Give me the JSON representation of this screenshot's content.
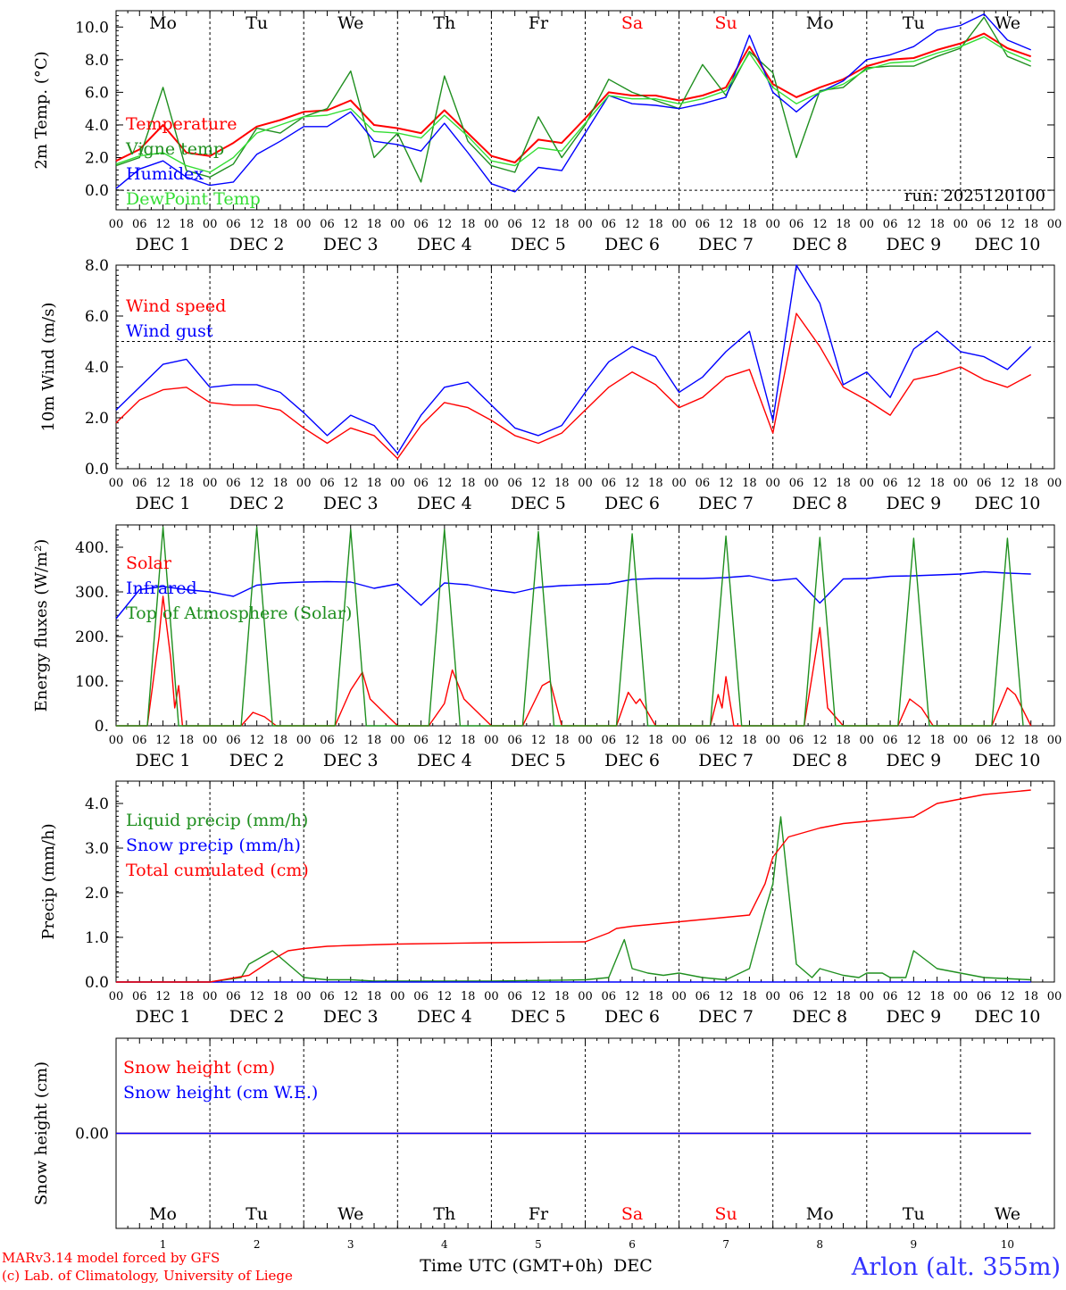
{
  "x_axis": {
    "day_labels": [
      "Mo",
      "Tu",
      "We",
      "Th",
      "Fr",
      "Sa",
      "Su",
      "Mo",
      "Tu",
      "We"
    ],
    "weekend_flags": [
      false,
      false,
      false,
      false,
      false,
      true,
      true,
      false,
      false,
      false
    ],
    "date_labels": [
      "DEC  1",
      "DEC  2",
      "DEC  3",
      "DEC  4",
      "DEC  5",
      "DEC  6",
      "DEC  7",
      "DEC  8",
      "DEC  9",
      "DEC 10"
    ],
    "hour_labels": [
      "00",
      "06",
      "12",
      "18"
    ],
    "final_hour_label": "00",
    "bottom_day_numbers": [
      "1",
      "2",
      "3",
      "4",
      "5",
      "6",
      "7",
      "8",
      "9",
      "10"
    ],
    "bottom_month": "DEC",
    "time_title": "Time UTC (GMT+0h)"
  },
  "colors": {
    "red": "#ff0000",
    "green": "#1f8f1f",
    "blue": "#0000ff",
    "lightgreen": "#33dd33",
    "dark_green_line": "#228b22"
  },
  "footer": {
    "model_line": "MARv3.14 model forced by GFS",
    "copyright_line": "(c) Lab. of Climatology, University of Liege",
    "location": "Arlon (alt. 355m)"
  },
  "chart_data": [
    {
      "type": "line",
      "ylabel": "2m Temp. (°C)",
      "ylim": [
        -1.2,
        11
      ],
      "yticks": [
        "0.0",
        "2.0",
        "4.0",
        "6.0",
        "8.0",
        "10.0"
      ],
      "reference_line": 0,
      "annotation": "run: 2025120100",
      "x_unit": "hours since DEC 1 00 UTC",
      "series": [
        {
          "name": "Temperature",
          "color": "#ff0000",
          "x": [
            0,
            6,
            12,
            18,
            24,
            30,
            36,
            42,
            48,
            54,
            60,
            66,
            72,
            78,
            84,
            90,
            96,
            102,
            108,
            114,
            120,
            126,
            132,
            138,
            144,
            150,
            156,
            162,
            168,
            174,
            180,
            186,
            192,
            198,
            204,
            210,
            216,
            222,
            228,
            234
          ],
          "values": [
            1.8,
            2.5,
            4,
            2.3,
            2.1,
            2.9,
            3.9,
            4.3,
            4.8,
            4.9,
            5.5,
            4,
            3.8,
            3.5,
            4.9,
            3.5,
            2.1,
            1.7,
            3.1,
            2.9,
            4.4,
            6,
            5.8,
            5.8,
            5.5,
            5.8,
            6.3,
            8.8,
            6.5,
            5.7,
            6.3,
            6.8,
            7.6,
            8,
            8.1,
            8.6,
            9,
            9.6,
            8.7,
            8.2
          ]
        },
        {
          "name": "Vigne temp",
          "color": "#1f8f1f",
          "x": [
            0,
            6,
            12,
            18,
            24,
            30,
            36,
            42,
            48,
            54,
            60,
            66,
            72,
            78,
            84,
            90,
            96,
            102,
            108,
            114,
            120,
            126,
            132,
            138,
            144,
            150,
            156,
            162,
            168,
            174,
            180,
            186,
            192,
            198,
            204,
            210,
            216,
            222,
            228,
            234
          ],
          "values": [
            1.5,
            2,
            6.3,
            1.2,
            0.8,
            1.6,
            3.8,
            3.5,
            4.5,
            5,
            7.3,
            2,
            3.5,
            0.5,
            7,
            3,
            1.5,
            1.1,
            4.5,
            2,
            4,
            6.8,
            6,
            5.5,
            5,
            7.7,
            5.8,
            8.5,
            7.2,
            2,
            6.1,
            6.3,
            7.5,
            7.6,
            7.6,
            8.2,
            8.7,
            10.6,
            8.2,
            7.6
          ]
        },
        {
          "name": "Humidex",
          "color": "#0000ff",
          "x": [
            0,
            6,
            12,
            18,
            24,
            30,
            36,
            42,
            48,
            54,
            60,
            66,
            72,
            78,
            84,
            90,
            96,
            102,
            108,
            114,
            120,
            126,
            132,
            138,
            144,
            150,
            156,
            162,
            168,
            174,
            180,
            186,
            192,
            198,
            204,
            210,
            216,
            222,
            228,
            234
          ],
          "values": [
            0.1,
            1.3,
            1.8,
            0.8,
            0.3,
            0.5,
            2.2,
            3,
            3.9,
            3.9,
            4.8,
            3,
            2.8,
            2.4,
            4.1,
            2.3,
            0.4,
            -0.1,
            1.4,
            1.2,
            3.5,
            5.8,
            5.3,
            5.2,
            5,
            5.3,
            5.7,
            9.5,
            6,
            4.8,
            6,
            6.7,
            8,
            8.3,
            8.8,
            9.8,
            10.1,
            10.8,
            9.2,
            8.6
          ]
        },
        {
          "name": "DewPoint Temp",
          "color": "#33dd33",
          "x": [
            0,
            6,
            12,
            18,
            24,
            30,
            36,
            42,
            48,
            54,
            60,
            66,
            72,
            78,
            84,
            90,
            96,
            102,
            108,
            114,
            120,
            126,
            132,
            138,
            144,
            150,
            156,
            162,
            168,
            174,
            180,
            186,
            192,
            198,
            204,
            210,
            216,
            222,
            228,
            234
          ],
          "values": [
            1.6,
            2.1,
            2.3,
            1.5,
            1.1,
            2,
            3.5,
            4,
            4.5,
            4.6,
            5,
            3.6,
            3.5,
            3.2,
            4.6,
            3.3,
            1.8,
            1.5,
            2.6,
            2.4,
            4.1,
            5.8,
            5.6,
            5.6,
            5.3,
            5.6,
            6.1,
            8.4,
            6.3,
            5.3,
            6,
            6.5,
            7.4,
            7.8,
            7.9,
            8.4,
            8.8,
            9.4,
            8.5,
            7.9
          ]
        }
      ]
    },
    {
      "type": "line",
      "ylabel": "10m Wind (m/s)",
      "ylim": [
        0,
        8
      ],
      "yticks": [
        "0.0",
        "2.0",
        "4.0",
        "6.0",
        "8.0"
      ],
      "reference_line": 5,
      "series": [
        {
          "name": "Wind speed",
          "color": "#ff0000",
          "x": [
            0,
            6,
            12,
            18,
            24,
            30,
            36,
            42,
            48,
            54,
            60,
            66,
            72,
            78,
            84,
            90,
            96,
            102,
            108,
            114,
            120,
            126,
            132,
            138,
            144,
            150,
            156,
            162,
            168,
            174,
            180,
            186,
            192,
            198,
            204,
            210,
            216,
            222,
            228,
            234
          ],
          "values": [
            1.8,
            2.7,
            3.1,
            3.2,
            2.6,
            2.5,
            2.5,
            2.3,
            1.6,
            1.0,
            1.6,
            1.3,
            0.4,
            1.7,
            2.6,
            2.4,
            1.9,
            1.3,
            1.0,
            1.4,
            2.3,
            3.2,
            3.8,
            3.3,
            2.4,
            2.8,
            3.6,
            3.9,
            1.4,
            6.1,
            4.8,
            3.2,
            2.7,
            2.1,
            3.5,
            3.7,
            4.0,
            3.5,
            3.2,
            3.7
          ]
        },
        {
          "name": "Wind gust",
          "color": "#0000ff",
          "x": [
            0,
            6,
            12,
            18,
            24,
            30,
            36,
            42,
            48,
            54,
            60,
            66,
            72,
            78,
            84,
            90,
            96,
            102,
            108,
            114,
            120,
            126,
            132,
            138,
            144,
            150,
            156,
            162,
            168,
            174,
            180,
            186,
            192,
            198,
            204,
            210,
            216,
            222,
            228,
            234
          ],
          "values": [
            2.3,
            3.2,
            4.1,
            4.3,
            3.2,
            3.3,
            3.3,
            3.0,
            2.2,
            1.3,
            2.1,
            1.7,
            0.6,
            2.1,
            3.2,
            3.4,
            2.5,
            1.6,
            1.3,
            1.7,
            3.0,
            4.2,
            4.8,
            4.4,
            3.0,
            3.6,
            4.6,
            5.4,
            1.9,
            8.0,
            6.5,
            3.3,
            3.8,
            2.8,
            4.7,
            5.4,
            4.6,
            4.4,
            3.9,
            4.8
          ]
        }
      ]
    },
    {
      "type": "line",
      "ylabel": "Energy fluxes (W/m²)",
      "ylim": [
        0,
        450
      ],
      "yticks": [
        "0.",
        "100.",
        "200.",
        "300.",
        "400."
      ],
      "series": [
        {
          "name": "Solar",
          "color": "#ff0000",
          "x": [
            0,
            8,
            11,
            12,
            14,
            15,
            16,
            17,
            24,
            32,
            35,
            38,
            41,
            48,
            56,
            60,
            63,
            65,
            72,
            80,
            84,
            86,
            89,
            96,
            104,
            109,
            111,
            114,
            120,
            128,
            131,
            133,
            134,
            138,
            144,
            152,
            154,
            155,
            156,
            158,
            162,
            168,
            176,
            180,
            182,
            186,
            192,
            200,
            203,
            206,
            209,
            216,
            224,
            228,
            230,
            234
          ],
          "values": [
            0,
            0,
            200,
            290,
            150,
            40,
            90,
            0,
            0,
            0,
            30,
            20,
            0,
            0,
            0,
            80,
            120,
            60,
            0,
            0,
            50,
            125,
            60,
            0,
            0,
            90,
            100,
            0,
            0,
            0,
            75,
            50,
            60,
            0,
            0,
            0,
            70,
            40,
            110,
            0,
            0,
            0,
            0,
            220,
            40,
            0,
            0,
            0,
            60,
            40,
            0,
            0,
            0,
            85,
            70,
            0
          ]
        },
        {
          "name": "Infrared",
          "color": "#0000ff",
          "x": [
            0,
            6,
            12,
            18,
            24,
            30,
            36,
            42,
            48,
            54,
            60,
            66,
            72,
            78,
            84,
            90,
            96,
            102,
            108,
            114,
            120,
            126,
            132,
            138,
            144,
            150,
            156,
            162,
            168,
            174,
            180,
            186,
            192,
            198,
            204,
            210,
            216,
            222,
            228,
            234
          ],
          "values": [
            240,
            305,
            312,
            305,
            300,
            290,
            315,
            320,
            322,
            323,
            322,
            308,
            318,
            270,
            320,
            316,
            305,
            298,
            310,
            314,
            316,
            318,
            328,
            330,
            330,
            330,
            332,
            336,
            325,
            330,
            275,
            329,
            330,
            335,
            336,
            338,
            340,
            345,
            342,
            340
          ]
        },
        {
          "name": "Top of Atmosphere (Solar)",
          "color": "#1f8f1f",
          "x": [
            0,
            8,
            12,
            16,
            24,
            32,
            36,
            40,
            48,
            56,
            60,
            64,
            72,
            80,
            84,
            88,
            96,
            104,
            108,
            112,
            120,
            128,
            132,
            136,
            144,
            152,
            156,
            160,
            168,
            176,
            180,
            184,
            192,
            200,
            204,
            208,
            216,
            224,
            228,
            232
          ],
          "values": [
            0,
            0,
            445,
            0,
            0,
            0,
            445,
            0,
            0,
            0,
            440,
            0,
            0,
            0,
            440,
            0,
            0,
            0,
            435,
            0,
            0,
            0,
            430,
            0,
            0,
            0,
            425,
            0,
            0,
            0,
            422,
            0,
            0,
            0,
            420,
            0,
            0,
            0,
            420,
            0
          ]
        }
      ]
    },
    {
      "type": "line",
      "ylabel": "Precip (mm/h)",
      "ylim": [
        0,
        4.5
      ],
      "yticks": [
        "0.0",
        "1.0",
        "2.0",
        "3.0",
        "4.0"
      ],
      "series": [
        {
          "name": "Liquid precip (mm/h)",
          "color": "#1f8f1f",
          "x": [
            0,
            12,
            24,
            32,
            34,
            38,
            40,
            44,
            48,
            54,
            60,
            66,
            72,
            96,
            120,
            126,
            130,
            132,
            136,
            140,
            144,
            150,
            156,
            162,
            166,
            168,
            170,
            174,
            178,
            180,
            184,
            186,
            190,
            192,
            196,
            198,
            202,
            204,
            210,
            216,
            222,
            234
          ],
          "values": [
            0,
            0,
            0,
            0.1,
            0.4,
            0.6,
            0.7,
            0.4,
            0.1,
            0.05,
            0.05,
            0.02,
            0.02,
            0.02,
            0.05,
            0.1,
            0.95,
            0.3,
            0.2,
            0.15,
            0.2,
            0.1,
            0.05,
            0.3,
            1.6,
            2.2,
            3.7,
            0.4,
            0.1,
            0.3,
            0.2,
            0.15,
            0.1,
            0.2,
            0.2,
            0.1,
            0.1,
            0.7,
            0.3,
            0.2,
            0.1,
            0.05
          ]
        },
        {
          "name": "Snow precip (mm/h)",
          "color": "#0000ff",
          "x": [
            0,
            234
          ],
          "values": [
            0,
            0
          ]
        },
        {
          "name": "Total cumulated (cm)",
          "color": "#ff0000",
          "x": [
            0,
            24,
            34,
            40,
            44,
            48,
            54,
            60,
            72,
            96,
            120,
            126,
            128,
            132,
            138,
            144,
            150,
            156,
            162,
            166,
            168,
            172,
            174,
            180,
            186,
            192,
            198,
            204,
            210,
            216,
            222,
            234
          ],
          "values": [
            0,
            0,
            0.15,
            0.5,
            0.7,
            0.75,
            0.8,
            0.82,
            0.85,
            0.88,
            0.9,
            1.1,
            1.2,
            1.25,
            1.3,
            1.35,
            1.4,
            1.45,
            1.5,
            2.2,
            2.8,
            3.25,
            3.3,
            3.45,
            3.55,
            3.6,
            3.65,
            3.7,
            4.0,
            4.1,
            4.2,
            4.3
          ]
        }
      ]
    },
    {
      "type": "line",
      "ylabel": "Snow height (cm)",
      "ylim": [
        -1,
        1
      ],
      "yticks": [
        "0.00"
      ],
      "series": [
        {
          "name": "Snow height (cm)",
          "color": "#ff0000",
          "x": [
            0,
            234
          ],
          "values": [
            0,
            0
          ]
        },
        {
          "name": "Snow height (cm W.E.)",
          "color": "#0000ff",
          "x": [
            0,
            234
          ],
          "values": [
            0,
            0
          ]
        }
      ]
    }
  ]
}
